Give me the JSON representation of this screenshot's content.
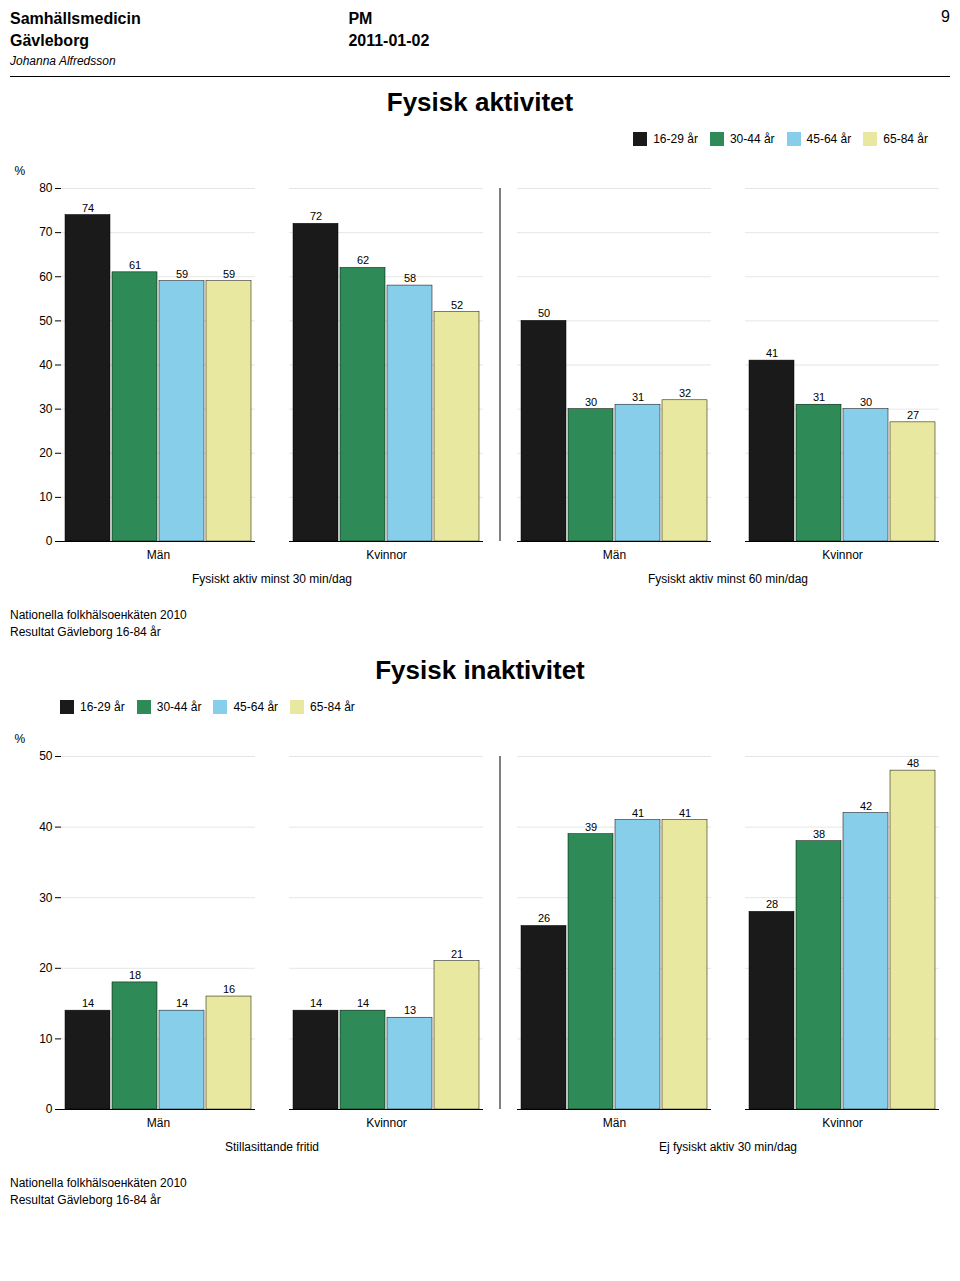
{
  "annotations": [
    "Samhällsmedicin",
    "Gävleborg",
    "Johanna Alfredsson",
    "PM",
    "2011-01-02",
    "9"
  ],
  "chart_data": [
    {
      "type": "bar",
      "title": "Fysisk aktivitet",
      "categories": [
        "Män",
        "Kvinnor",
        "Män",
        "Kvinnor"
      ],
      "group_labels": [
        "Fysiskt aktiv minst 30 min/dag",
        "Fysiskt aktiv minst 60 min/dag"
      ],
      "series": [
        {
          "name": "16-29 år",
          "color": "#1a1a1a",
          "values": [
            74,
            72,
            50,
            41
          ]
        },
        {
          "name": "30-44 år",
          "color": "#2e8b57",
          "values": [
            61,
            62,
            30,
            31
          ]
        },
        {
          "name": "45-64 år",
          "color": "#87ceeb",
          "values": [
            59,
            58,
            31,
            30
          ]
        },
        {
          "name": "65-84 år",
          "color": "#e8e8a0",
          "values": [
            59,
            52,
            32,
            27
          ]
        }
      ],
      "ylim": [
        0,
        80
      ],
      "yticks": [
        0,
        10,
        20,
        30,
        40,
        50,
        60,
        70,
        80
      ],
      "ylabel": "%",
      "grid": true,
      "legend": "upper right",
      "data_labels": true,
      "annotations": [
        "Nationella folkhälsoенkäten 2010",
        "Resultat Gävleborg 16-84 år"
      ]
    },
    {
      "type": "bar",
      "title": "Fysisk inaktivitet",
      "categories": [
        "Män",
        "Kvinnor",
        "Män",
        "Kvinnor"
      ],
      "group_labels": [
        "Stillasittande fritid",
        "Ej fysiskt aktiv 30 min/dag"
      ],
      "series": [
        {
          "name": "16-29 år",
          "color": "#1a1a1a",
          "values": [
            14,
            14,
            26,
            28
          ]
        },
        {
          "name": "30-44 år",
          "color": "#2e8b57",
          "values": [
            18,
            14,
            39,
            38
          ]
        },
        {
          "name": "45-64 år",
          "color": "#87ceeb",
          "values": [
            14,
            13,
            41,
            42
          ]
        },
        {
          "name": "65-84 år",
          "color": "#e8e8a0",
          "values": [
            16,
            21,
            41,
            48
          ]
        }
      ],
      "ylim": [
        0,
        50
      ],
      "yticks": [
        0,
        10,
        20,
        30,
        40,
        50
      ],
      "ylabel": "%",
      "grid": true,
      "legend": "upper left",
      "data_labels": true,
      "annotations": [
        "Nationella folkhälsoенkäten 2010",
        "Resultat Gävleborg 16-84 år"
      ]
    }
  ]
}
